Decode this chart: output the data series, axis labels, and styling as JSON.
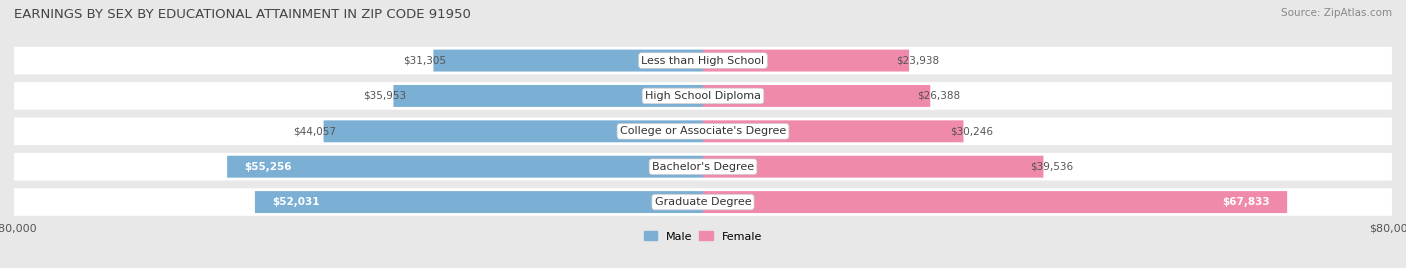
{
  "title": "EARNINGS BY SEX BY EDUCATIONAL ATTAINMENT IN ZIP CODE 91950",
  "source": "Source: ZipAtlas.com",
  "categories": [
    "Less than High School",
    "High School Diploma",
    "College or Associate's Degree",
    "Bachelor's Degree",
    "Graduate Degree"
  ],
  "male_values": [
    31305,
    35953,
    44057,
    55256,
    52031
  ],
  "female_values": [
    23938,
    26388,
    30246,
    39536,
    67833
  ],
  "male_color": "#7bafd4",
  "female_color": "#f08aaa",
  "max_val": 80000,
  "bg_color": "#e8e8e8",
  "row_bg_color": "#ffffff",
  "title_fontsize": 9.5,
  "source_fontsize": 7.5,
  "value_fontsize": 7.5,
  "category_fontsize": 8,
  "axis_fontsize": 8
}
